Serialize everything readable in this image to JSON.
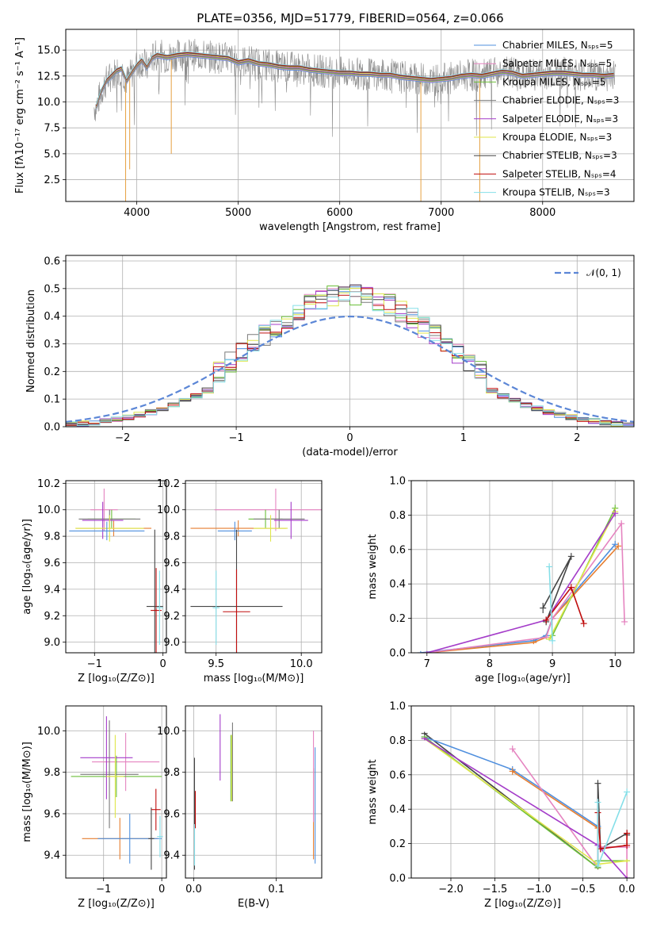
{
  "title": "PLATE=0356, MJD=51779, FIBERID=0564, z=0.066",
  "colors": {
    "chabrier_miles": "#4f8fde",
    "salpeter_miles": "#e584c0",
    "kroupa_miles": "#6cbf3a",
    "chabrier_elodie": "#7a7a7a",
    "salpeter_elodie": "#a43cc9",
    "kroupa_elodie": "#dfe64a",
    "chabrier_stelib": "#454545",
    "salpeter_stelib": "#c00d0d",
    "kroupa_stelib": "#85dfe8",
    "orange": "#e67e30",
    "gauss": "#5b86d6",
    "grid": "#b0b0b0"
  },
  "chart_data": [
    {
      "id": "spectrum",
      "type": "line",
      "xlabel": "wavelength [Angstrom, rest frame]",
      "ylabel": "Flux [fλ10⁻¹⁷ erg cm⁻² s⁻¹ A⁻¹]",
      "xlim": [
        3300,
        8900
      ],
      "ylim": [
        0.4,
        17.0
      ],
      "xticks": [
        4000,
        5000,
        6000,
        7000,
        8000
      ],
      "yticks": [
        2.5,
        5.0,
        7.5,
        10.0,
        12.5,
        15.0
      ],
      "legend_position": "right",
      "legend": [
        "Chabrier MILES, Nₛₚₛ=5",
        "Salpeter MILES, Nₛₚₛ=5",
        "Kroupa MILES, Nₛₚₛ=5",
        "Chabrier ELODIE, Nₛₚₛ=3",
        "Salpeter ELODIE, Nₛₚₛ=3",
        "Kroupa ELODIE, Nₛₚₛ=3",
        "Chabrier STELIB, Nₛₚₛ=3",
        "Salpeter STELIB, Nₛₚₛ=4",
        "Kroupa STELIB, Nₛₚₛ=3"
      ],
      "model_x": [
        3600,
        3650,
        3700,
        3750,
        3800,
        3850,
        3900,
        3950,
        4000,
        4050,
        4100,
        4150,
        4200,
        4300,
        4400,
        4500,
        4600,
        4700,
        4800,
        4900,
        5000,
        5100,
        5200,
        5300,
        5400,
        5500,
        5600,
        5700,
        5800,
        5900,
        6000,
        6100,
        6200,
        6300,
        6400,
        6500,
        6600,
        6700,
        6800,
        6900,
        7000,
        7100,
        7200,
        7300,
        7400,
        7500,
        7600,
        7700,
        7800,
        7900,
        8000,
        8100,
        8200,
        8300,
        8400,
        8500,
        8600,
        8700
      ],
      "model_y": [
        9.5,
        11.0,
        12.0,
        12.5,
        13.0,
        13.2,
        12.0,
        12.8,
        13.5,
        14.0,
        13.3,
        14.2,
        14.5,
        14.3,
        14.5,
        14.6,
        14.5,
        14.4,
        14.3,
        14.2,
        13.8,
        14.0,
        13.7,
        13.6,
        13.4,
        13.3,
        13.3,
        13.1,
        13.0,
        12.9,
        12.8,
        12.8,
        12.7,
        12.7,
        12.6,
        12.6,
        12.4,
        12.3,
        12.2,
        12.1,
        12.2,
        12.3,
        12.5,
        12.6,
        12.5,
        12.7,
        12.9,
        12.8,
        12.5,
        12.6,
        12.7,
        12.8,
        12.8,
        12.7,
        12.6,
        12.6,
        12.5,
        12.6
      ]
    },
    {
      "id": "residuals",
      "type": "histogram",
      "xlabel": "(data-model)/error",
      "ylabel": "Normed distribution",
      "xlim": [
        -2.5,
        2.5
      ],
      "ylim": [
        0,
        0.62
      ],
      "xticks": [
        -2,
        -1,
        0,
        1,
        2
      ],
      "yticks": [
        0.0,
        0.1,
        0.2,
        0.3,
        0.4,
        0.5,
        0.6
      ],
      "legend": [
        "𝒩(0, 1)"
      ],
      "legend_position": "top-right"
    },
    {
      "id": "age_vs_z",
      "type": "scatter",
      "xlabel": "Z [log₁₀(Z/Z⊙)]",
      "ylabel": "age  [log₁₀(age/yr)]",
      "xlim": [
        -1.42,
        0.05
      ],
      "ylim": [
        8.92,
        10.22
      ],
      "xticks": [
        -1,
        0
      ],
      "yticks": [
        9.0,
        9.2,
        9.4,
        9.6,
        9.8,
        10.0,
        10.2
      ],
      "points": [
        {
          "x": -0.72,
          "y": 9.86,
          "xerr": 0.55,
          "yerr": 0.06,
          "c": "orange"
        },
        {
          "x": -0.86,
          "y": 10.0,
          "xerr": 0.2,
          "yerr": 0.16,
          "c": "salpeter_miles"
        },
        {
          "x": -0.75,
          "y": 9.93,
          "xerr": 0.35,
          "yerr": 0.07,
          "c": "kroupa_miles"
        },
        {
          "x": -0.78,
          "y": 9.93,
          "xerr": 0.45,
          "yerr": 0.07,
          "c": "chabrier_elodie"
        },
        {
          "x": -0.88,
          "y": 9.92,
          "xerr": 0.3,
          "yerr": 0.14,
          "c": "salpeter_elodie"
        },
        {
          "x": -0.78,
          "y": 9.86,
          "xerr": 0.5,
          "yerr": 0.1,
          "c": "kroupa_elodie"
        },
        {
          "x": -0.82,
          "y": 9.84,
          "xerr": 0.55,
          "yerr": 0.07,
          "c": "chabrier_miles"
        },
        {
          "x": -0.12,
          "y": 9.27,
          "xerr": 0.12,
          "yerr": 0.58,
          "c": "chabrier_stelib"
        },
        {
          "x": -0.1,
          "y": 9.24,
          "xerr": 0.08,
          "yerr": 0.32,
          "c": "salpeter_stelib"
        },
        {
          "x": -0.05,
          "y": 9.26,
          "xerr": 0.05,
          "yerr": 0.28,
          "c": "kroupa_stelib"
        }
      ]
    },
    {
      "id": "age_vs_mass",
      "type": "scatter",
      "xlabel": "mass [log₁₀(M/M⊙)]",
      "ylabel": "",
      "xlim": [
        9.32,
        10.12
      ],
      "ylim": [
        8.92,
        10.22
      ],
      "xticks": [
        9.5,
        10.0
      ],
      "yticks": [
        9.0,
        9.2,
        9.4,
        9.6,
        9.8,
        10.0,
        10.2
      ],
      "points": [
        {
          "x": 9.63,
          "y": 9.86,
          "xerr": 0.28,
          "yerr": 0.06,
          "c": "orange"
        },
        {
          "x": 9.85,
          "y": 10.0,
          "xerr": 0.36,
          "yerr": 0.16,
          "c": "salpeter_miles"
        },
        {
          "x": 9.79,
          "y": 9.93,
          "xerr": 0.1,
          "yerr": 0.07,
          "c": "kroupa_miles"
        },
        {
          "x": 9.87,
          "y": 9.93,
          "xerr": 0.15,
          "yerr": 0.07,
          "c": "chabrier_elodie"
        },
        {
          "x": 9.94,
          "y": 9.92,
          "xerr": 0.1,
          "yerr": 0.14,
          "c": "salpeter_elodie"
        },
        {
          "x": 9.82,
          "y": 9.86,
          "xerr": 0.1,
          "yerr": 0.1,
          "c": "kroupa_elodie"
        },
        {
          "x": 9.61,
          "y": 9.84,
          "xerr": 0.1,
          "yerr": 0.07,
          "c": "chabrier_miles"
        },
        {
          "x": 9.62,
          "y": 9.27,
          "xerr": 0.27,
          "yerr": 0.58,
          "c": "chabrier_stelib"
        },
        {
          "x": 9.62,
          "y": 9.23,
          "xerr": 0.08,
          "yerr": 0.32,
          "c": "salpeter_stelib"
        },
        {
          "x": 9.5,
          "y": 9.26,
          "xerr": 0.02,
          "yerr": 0.28,
          "c": "kroupa_stelib"
        }
      ]
    },
    {
      "id": "weight_vs_age",
      "type": "line",
      "xlabel": "age  [log₁₀(age/yr)]",
      "ylabel": "mass weight",
      "xlim": [
        6.75,
        10.3
      ],
      "ylim": [
        0,
        1.0
      ],
      "xticks": [
        7,
        8,
        9,
        10
      ],
      "yticks": [
        0.0,
        0.2,
        0.4,
        0.6,
        0.8,
        1.0
      ],
      "series": [
        {
          "c": "chabrier_miles",
          "x": [
            6.9,
            8.7,
            8.9,
            9.0,
            10.0
          ],
          "y": [
            0.0,
            0.07,
            0.1,
            0.2,
            0.63
          ],
          "yerr": [
            0,
            0,
            0,
            0,
            0.02
          ]
        },
        {
          "c": "orange",
          "x": [
            7.0,
            8.7,
            8.9,
            9.0,
            10.05
          ],
          "y": [
            0.0,
            0.06,
            0.09,
            0.2,
            0.62
          ],
          "yerr": [
            0,
            0,
            0,
            0,
            0.02
          ]
        },
        {
          "c": "salpeter_miles",
          "x": [
            7.0,
            8.9,
            9.0,
            10.1,
            10.15
          ],
          "y": [
            0.0,
            0.09,
            0.2,
            0.75,
            0.18
          ],
          "yerr": [
            0,
            0,
            0,
            0.02,
            0.02
          ]
        },
        {
          "c": "kroupa_miles",
          "x": [
            8.95,
            9.0,
            10.0
          ],
          "y": [
            0.08,
            0.1,
            0.84
          ],
          "yerr": [
            0,
            0,
            0.02
          ]
        },
        {
          "c": "kroupa_elodie",
          "x": [
            8.95,
            10.0
          ],
          "y": [
            0.08,
            0.82
          ],
          "yerr": [
            0,
            0.02
          ]
        },
        {
          "c": "salpeter_elodie",
          "x": [
            7.0,
            8.9,
            10.0
          ],
          "y": [
            0.0,
            0.19,
            0.81
          ],
          "yerr": [
            0,
            0.02,
            0.02
          ]
        },
        {
          "c": "chabrier_stelib",
          "x": [
            8.85,
            9.3,
            8.9
          ],
          "y": [
            0.26,
            0.56,
            0.18
          ],
          "yerr": [
            0.03,
            0.02,
            0.02
          ]
        },
        {
          "c": "salpeter_stelib",
          "x": [
            8.9,
            9.3,
            9.5
          ],
          "y": [
            0.19,
            0.38,
            0.17
          ],
          "yerr": [
            0.02,
            0.02,
            0.02
          ]
        },
        {
          "c": "kroupa_stelib",
          "x": [
            8.95,
            9.0
          ],
          "y": [
            0.5,
            0.07
          ],
          "yerr": [
            0.02,
            0.02
          ]
        }
      ]
    },
    {
      "id": "mass_vs_z",
      "type": "scatter",
      "xlabel": "Z [log₁₀(Z/Z⊙)]",
      "ylabel": "mass [log₁₀(M/M⊙)]",
      "xlim": [
        -1.65,
        0.08
      ],
      "ylim": [
        9.29,
        10.12
      ],
      "xticks": [
        -1,
        0
      ],
      "yticks": [
        9.4,
        9.6,
        9.8,
        10.0
      ],
      "points": [
        {
          "x": -0.72,
          "y": 9.48,
          "xerr": 0.65,
          "yerr": 0.1,
          "c": "orange"
        },
        {
          "x": -0.62,
          "y": 9.85,
          "xerr": 0.58,
          "yerr": 0.14,
          "c": "salpeter_miles"
        },
        {
          "x": -0.78,
          "y": 9.78,
          "xerr": 0.78,
          "yerr": 0.1,
          "c": "kroupa_miles"
        },
        {
          "x": -0.9,
          "y": 9.79,
          "xerr": 0.5,
          "yerr": 0.26,
          "c": "chabrier_elodie"
        },
        {
          "x": -0.95,
          "y": 9.87,
          "xerr": 0.45,
          "yerr": 0.2,
          "c": "salpeter_elodie"
        },
        {
          "x": -0.8,
          "y": 9.78,
          "xerr": 0.15,
          "yerr": 0.2,
          "c": "kroupa_elodie"
        },
        {
          "x": -0.55,
          "y": 9.48,
          "xerr": 0.55,
          "yerr": 0.12,
          "c": "chabrier_miles"
        },
        {
          "x": -0.18,
          "y": 9.48,
          "xerr": 0.05,
          "yerr": 0.15,
          "c": "chabrier_stelib"
        },
        {
          "x": -0.1,
          "y": 9.62,
          "xerr": 0.08,
          "yerr": 0.1,
          "c": "salpeter_stelib"
        },
        {
          "x": -0.03,
          "y": 9.49,
          "xerr": 0.05,
          "yerr": 0.1,
          "c": "kroupa_stelib"
        }
      ]
    },
    {
      "id": "mass_vs_ebv",
      "type": "scatter",
      "xlabel": "E(B-V)",
      "ylabel": "",
      "xlim": [
        -0.01,
        0.155
      ],
      "ylim": [
        9.29,
        10.12
      ],
      "xticks": [
        0.0,
        0.1
      ],
      "yticks": [
        9.4,
        9.6,
        9.8,
        10.0
      ],
      "points": [
        {
          "x": 0.145,
          "y": 9.6,
          "yerr": 0.22,
          "c": "orange"
        },
        {
          "x": 0.145,
          "y": 9.78,
          "yerr": 0.22,
          "c": "salpeter_miles"
        },
        {
          "x": 0.045,
          "y": 9.82,
          "yerr": 0.16,
          "c": "kroupa_miles"
        },
        {
          "x": 0.047,
          "y": 9.85,
          "yerr": 0.19,
          "c": "chabrier_elodie"
        },
        {
          "x": 0.032,
          "y": 9.92,
          "yerr": 0.16,
          "c": "salpeter_elodie"
        },
        {
          "x": 0.046,
          "y": 9.82,
          "yerr": 0.16,
          "c": "kroupa_elodie"
        },
        {
          "x": 0.147,
          "y": 9.64,
          "yerr": 0.28,
          "c": "chabrier_miles"
        },
        {
          "x": 0.001,
          "y": 9.6,
          "yerr": 0.27,
          "c": "chabrier_stelib"
        },
        {
          "x": 0.002,
          "y": 9.62,
          "yerr": 0.09,
          "c": "salpeter_stelib"
        },
        {
          "x": 0.001,
          "y": 9.45,
          "yerr": 0.1,
          "c": "kroupa_stelib"
        }
      ]
    },
    {
      "id": "weight_vs_z",
      "type": "line",
      "xlabel": "Z [log₁₀(Z/Z⊙)]",
      "ylabel": "mass weight",
      "xlim": [
        -2.45,
        0.08
      ],
      "ylim": [
        0,
        1.0
      ],
      "xticks": [
        -2.0,
        -1.5,
        -1.0,
        -0.5,
        0.0
      ],
      "yticks": [
        0.0,
        0.2,
        0.4,
        0.6,
        0.8,
        1.0
      ],
      "series": [
        {
          "c": "chabrier_stelib",
          "x": [
            -2.3,
            -0.33,
            -0.33,
            -0.3,
            0.0,
            0.0
          ],
          "y": [
            0.84,
            0.06,
            0.55,
            0.17,
            0.26,
            0.25
          ],
          "yerr": [
            0.01,
            0.01,
            0.02,
            0.02,
            0.02,
            0.02
          ]
        },
        {
          "c": "chabrier_miles",
          "x": [
            -2.3,
            -1.3,
            -0.33,
            -0.33
          ],
          "y": [
            0.82,
            0.63,
            0.3,
            0.06
          ],
          "yerr": [
            0.01,
            0.02,
            0.02,
            0.01
          ]
        },
        {
          "c": "orange",
          "x": [
            -1.3,
            -0.33,
            -0.33
          ],
          "y": [
            0.62,
            0.29,
            0.06
          ],
          "yerr": [
            0.02,
            0.02,
            0.01
          ]
        },
        {
          "c": "salpeter_miles",
          "x": [
            -1.3,
            -0.33,
            -0.33,
            -0.3,
            0.0,
            0.0
          ],
          "y": [
            0.75,
            0.06,
            0.2,
            0.18,
            0.18,
            0.0
          ],
          "yerr": [
            0.02,
            0.01,
            0.02,
            0.02,
            0.02,
            0.01
          ]
        },
        {
          "c": "kroupa_miles",
          "x": [
            -2.3,
            -0.33,
            -0.33,
            0.0
          ],
          "y": [
            0.82,
            0.06,
            0.1,
            0.1
          ],
          "yerr": [
            0.01,
            0.01,
            0.01,
            0.01
          ]
        },
        {
          "c": "kroupa_elodie",
          "x": [
            -2.3,
            -0.33,
            0.0
          ],
          "y": [
            0.81,
            0.08,
            0.1
          ],
          "yerr": [
            0.01,
            0.01,
            0.01
          ]
        },
        {
          "c": "salpeter_elodie",
          "x": [
            -2.3,
            -0.33,
            0.0
          ],
          "y": [
            0.81,
            0.19,
            0.0
          ],
          "yerr": [
            0.01,
            0.02,
            0.01
          ]
        },
        {
          "c": "salpeter_stelib",
          "x": [
            -0.33,
            -0.3,
            0.0,
            0.0
          ],
          "y": [
            0.38,
            0.17,
            0.19,
            0.26
          ],
          "yerr": [
            0.02,
            0.02,
            0.02,
            0.02
          ]
        },
        {
          "c": "kroupa_stelib",
          "x": [
            -0.33,
            -0.33,
            0.0
          ],
          "y": [
            0.44,
            0.07,
            0.5
          ],
          "yerr": [
            0.02,
            0.01,
            0.02
          ]
        }
      ]
    }
  ]
}
